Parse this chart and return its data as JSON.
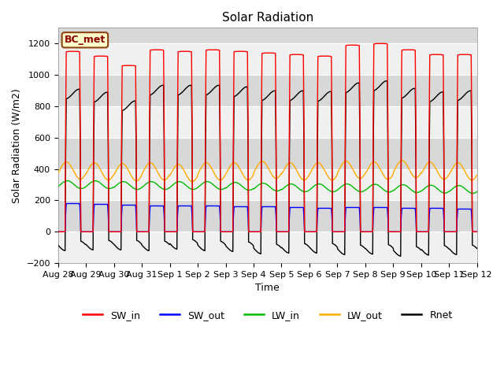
{
  "title": "Solar Radiation",
  "xlabel": "Time",
  "ylabel": "Solar Radiation (W/m2)",
  "ylim": [
    -200,
    1300
  ],
  "yticks": [
    -200,
    0,
    200,
    400,
    600,
    800,
    1000,
    1200
  ],
  "num_days": 15,
  "label_text": "BC_met",
  "legend_labels": [
    "SW_in",
    "SW_out",
    "LW_in",
    "LW_out",
    "Rnet"
  ],
  "legend_colors": [
    "#ff0000",
    "#0000ff",
    "#00bb00",
    "#ffaa00",
    "#000000"
  ],
  "SW_in_peak": [
    1150,
    1120,
    1060,
    1160,
    1150,
    1160,
    1150,
    1140,
    1130,
    1120,
    1190,
    1200,
    1160,
    1130,
    1130
  ],
  "SW_out_peak": [
    180,
    175,
    170,
    165,
    165,
    165,
    160,
    160,
    155,
    150,
    155,
    155,
    150,
    150,
    145
  ],
  "LW_in_base": [
    300,
    300,
    295,
    295,
    295,
    295,
    290,
    285,
    280,
    280,
    280,
    278,
    275,
    272,
    270
  ],
  "LW_out_base": [
    390,
    385,
    380,
    385,
    375,
    385,
    385,
    395,
    385,
    385,
    395,
    390,
    400,
    390,
    385
  ],
  "background_color": "#ffffff",
  "plot_bg_light": "#f0f0f0",
  "plot_bg_dark": "#d8d8d8",
  "xticklabels": [
    "Aug 28",
    "Aug 29",
    "Aug 30",
    "Aug 31",
    "Sep 1",
    "Sep 2",
    "Sep 3",
    "Sep 4",
    "Sep 5",
    "Sep 6",
    "Sep 7",
    "Sep 8",
    "Sep 9",
    "Sep 10",
    "Sep 11",
    "Sep 12"
  ]
}
